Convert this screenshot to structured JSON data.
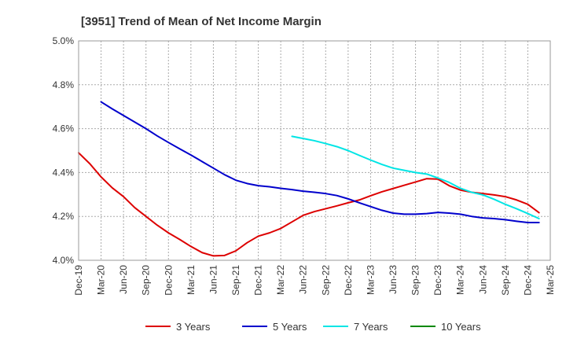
{
  "chart_data": {
    "type": "line",
    "title": "[3951]  Trend of Mean of Net Income Margin",
    "xlabel": "",
    "ylabel": "",
    "x_ticks": [
      "Dec-19",
      "Mar-20",
      "Jun-20",
      "Sep-20",
      "Dec-20",
      "Mar-21",
      "Jun-21",
      "Sep-21",
      "Dec-21",
      "Mar-22",
      "Jun-22",
      "Sep-22",
      "Dec-22",
      "Mar-23",
      "Jun-23",
      "Sep-23",
      "Dec-23",
      "Mar-24",
      "Jun-24",
      "Sep-24",
      "Dec-24",
      "Mar-25"
    ],
    "y_ticks": [
      "4.0%",
      "4.2%",
      "4.4%",
      "4.6%",
      "4.8%",
      "5.0%"
    ],
    "ylim": [
      4.0,
      5.0
    ],
    "grid": true,
    "legend_position": "bottom",
    "series": [
      {
        "name": "3 Years",
        "color": "#dd0000",
        "values": [
          4.49,
          4.44,
          4.38,
          4.33,
          4.29,
          4.24,
          4.2,
          4.16,
          4.125,
          4.095,
          4.063,
          4.035,
          4.02,
          4.022,
          4.043,
          4.08,
          4.11,
          4.125,
          4.145,
          4.175,
          4.205,
          4.222,
          4.235,
          4.248,
          4.262,
          4.275,
          4.294,
          4.312,
          4.327,
          4.342,
          4.357,
          4.372,
          4.37,
          4.34,
          4.32,
          4.31,
          4.304,
          4.298,
          4.29,
          4.275,
          4.255,
          4.217
        ]
      },
      {
        "name": "5 Years",
        "color": "#0000cc",
        "values": [
          null,
          null,
          4.722,
          4.69,
          4.66,
          4.63,
          4.6,
          4.567,
          4.537,
          4.508,
          4.48,
          4.45,
          4.42,
          4.39,
          4.365,
          4.35,
          4.34,
          4.335,
          4.328,
          4.322,
          4.315,
          4.31,
          4.304,
          4.295,
          4.28,
          4.262,
          4.245,
          4.228,
          4.215,
          4.21,
          4.21,
          4.213,
          4.218,
          4.215,
          4.21,
          4.2,
          4.193,
          4.19,
          4.185,
          4.178,
          4.172,
          4.172
        ]
      },
      {
        "name": "7 Years",
        "color": "#00e5e5",
        "values": [
          null,
          null,
          null,
          null,
          null,
          null,
          null,
          null,
          null,
          null,
          null,
          null,
          null,
          null,
          null,
          null,
          null,
          null,
          null,
          4.565,
          4.555,
          4.545,
          4.532,
          4.518,
          4.5,
          4.478,
          4.457,
          4.437,
          4.42,
          4.41,
          4.4,
          4.393,
          4.375,
          4.355,
          4.328,
          4.31,
          4.298,
          4.278,
          4.255,
          4.235,
          4.213,
          4.19
        ]
      },
      {
        "name": "10 Years",
        "color": "#008800",
        "values": []
      }
    ]
  }
}
